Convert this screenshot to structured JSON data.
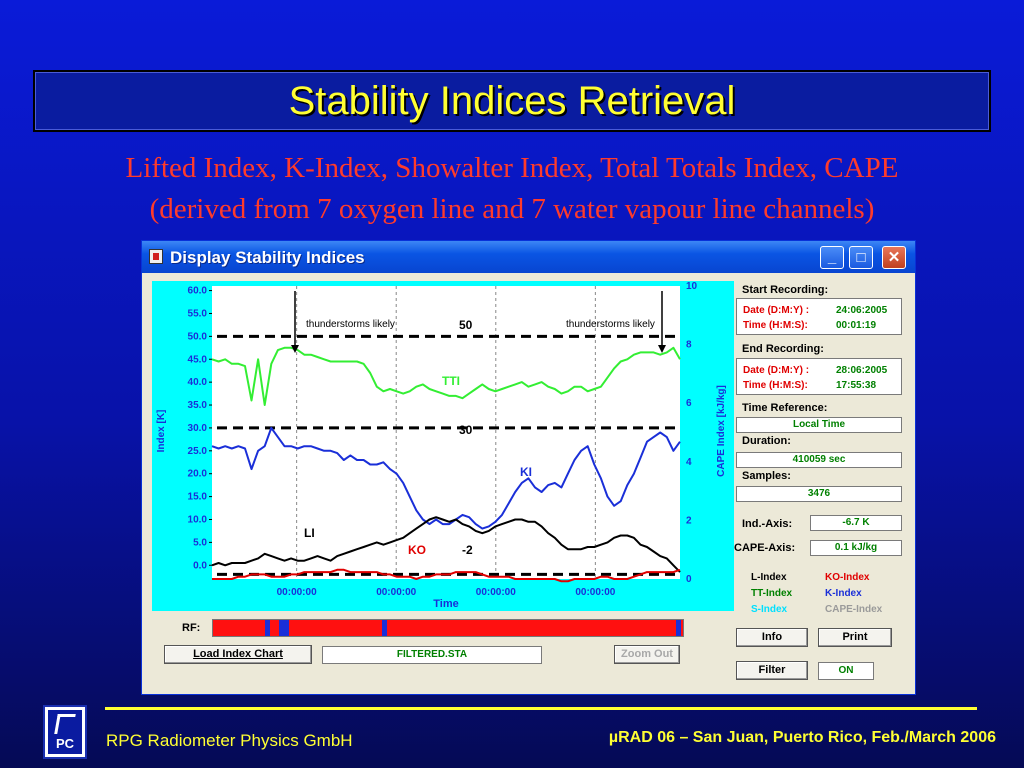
{
  "slide": {
    "title": "Stability Indices Retrieval",
    "subtitle_line1": "Lifted Index, K-Index, Showalter Index, Total Totals Index, CAPE",
    "subtitle_line2": "(derived from 7 oxygen line and 7 water vapour line channels)"
  },
  "window": {
    "title": "Display Stability Indices",
    "minimize": "_",
    "maximize": "□",
    "close": "✕",
    "icon": "app-icon"
  },
  "chart_data": {
    "type": "line",
    "xlabel": "Time",
    "ylabel": "Index [K]",
    "y2label": "CAPE Index [kJ/kg]",
    "y_ticks": [
      "60.0",
      "55.0",
      "50.0",
      "45.0",
      "40.0",
      "35.0",
      "30.0",
      "25.0",
      "20.0",
      "15.0",
      "10.0",
      "5.0",
      "0.0"
    ],
    "y2_ticks": [
      "10",
      "8",
      "6",
      "4",
      "2",
      "0"
    ],
    "x_ticks": [
      "00:00:00",
      "00:00:00",
      "00:00:00",
      "00:00:00"
    ],
    "ylim": [
      -3,
      61
    ],
    "y2lim": [
      0,
      10
    ],
    "threshold_lines": [
      {
        "value": 50,
        "label": "50"
      },
      {
        "value": 30,
        "label": "30"
      },
      {
        "value": -2,
        "label": "-2"
      }
    ],
    "annotations": [
      "thunderstorms likely",
      "thunderstorms likely"
    ],
    "series_labels": {
      "tti": "TTI",
      "ki": "KI",
      "li": "LI",
      "ko": "KO"
    },
    "series": [
      {
        "name": "TTI",
        "color": "#33ee33",
        "values": [
          45,
          44.5,
          45,
          44,
          44,
          43.5,
          36,
          45,
          35,
          44,
          47,
          47.5,
          47.5,
          47,
          46,
          46,
          45.5,
          45,
          44.5,
          44.5,
          44.5,
          44.5,
          44.5,
          44,
          42,
          39,
          38,
          38.5,
          38,
          37.5,
          38,
          39,
          39.5,
          38.5,
          38,
          37.5,
          37,
          37,
          36.5,
          37.5,
          38.5,
          39.5,
          38.5,
          38,
          38.5,
          39,
          39.5,
          40,
          39,
          39.5,
          40,
          39,
          38.5,
          37.5,
          38,
          39,
          39,
          38,
          38.5,
          39,
          41,
          43,
          44.5,
          45,
          46,
          46.5,
          46.5,
          46.5,
          46,
          46.5,
          47.5,
          45
        ]
      },
      {
        "name": "KI",
        "color": "#1a2fd8",
        "values": [
          26,
          25.5,
          26,
          25.5,
          26,
          25.5,
          21,
          25,
          26,
          30,
          28,
          26,
          26,
          25.5,
          26,
          26,
          25.5,
          25,
          25,
          24.5,
          23,
          24,
          23,
          23,
          22,
          22,
          22.5,
          21,
          20,
          18,
          15,
          12,
          10,
          9,
          10,
          9,
          9,
          10,
          11,
          10.5,
          9,
          8,
          8.5,
          9.5,
          11,
          13.5,
          16,
          18,
          19,
          17,
          16,
          17.5,
          18,
          17,
          20,
          23,
          25,
          26,
          22,
          19,
          15,
          13,
          14,
          17.5,
          20,
          23.5,
          27,
          28,
          29,
          28,
          25,
          27
        ]
      },
      {
        "name": "LI",
        "color": "#000000",
        "values": [
          0,
          0.5,
          0,
          0.5,
          0.5,
          0.5,
          1,
          1.5,
          2.5,
          2,
          1.5,
          1,
          1.5,
          1,
          1,
          1.5,
          2,
          1.5,
          1,
          2,
          2.5,
          3,
          3.5,
          4,
          4.5,
          5,
          4.5,
          5,
          5.5,
          6,
          7,
          8,
          9,
          10,
          10.5,
          10,
          9.5,
          10,
          9,
          8.5,
          7.5,
          7,
          7.5,
          8.5,
          9,
          9.5,
          10,
          10,
          9.5,
          9.5,
          8.5,
          7,
          6,
          4.5,
          3.5,
          3.5,
          3.5,
          4,
          4,
          4.5,
          5,
          6,
          6.5,
          6.5,
          6,
          4.5,
          4,
          3,
          2,
          1.5,
          0,
          -1.5
        ]
      },
      {
        "name": "KO",
        "color": "#e00000",
        "values": [
          -3,
          -3,
          -3,
          -3,
          -2.5,
          -2.5,
          -2,
          -2,
          -2,
          -2.5,
          -2.5,
          -2.5,
          -2,
          -2,
          -1.5,
          -1.5,
          -1.5,
          -1.5,
          -1.5,
          -1,
          -1,
          -1.5,
          -1.5,
          -1.5,
          -1.5,
          -1.5,
          -2,
          -2,
          -2.5,
          -2.5,
          -2.5,
          -3,
          -2.5,
          -2.5,
          -2,
          -2,
          -2,
          -1.5,
          -1.5,
          -1.5,
          -1.5,
          -2,
          -2.5,
          -2.5,
          -2.5,
          -2.5,
          -3,
          -3,
          -3,
          -3,
          -3,
          -3,
          -3,
          -3.5,
          -3.5,
          -3,
          -3,
          -3,
          -3,
          -2.5,
          -2.5,
          -3,
          -3,
          -3,
          -2.5,
          -2,
          -1.5,
          -1.5,
          -1.5,
          -1.5,
          -1.5,
          -1
        ]
      }
    ],
    "cape_values": [
      0,
      0,
      0,
      0,
      0,
      0,
      0,
      0,
      0,
      0,
      0,
      0,
      0,
      0,
      0,
      0,
      0,
      0,
      0,
      0,
      0,
      0,
      0,
      0,
      0,
      0,
      0,
      0,
      0,
      0,
      0,
      0,
      0,
      0,
      0,
      0,
      0,
      0,
      0,
      0,
      0,
      0,
      0,
      0,
      0,
      0,
      0,
      0,
      0,
      0,
      0,
      0,
      0,
      0,
      0,
      0,
      0,
      0,
      0,
      0,
      0,
      0,
      0,
      0,
      0,
      0,
      0,
      0,
      0,
      0,
      0,
      0
    ]
  },
  "rf": {
    "label": "RF:",
    "segments_blue_at": [
      0.11,
      0.14,
      0.15,
      0.36,
      0.985
    ]
  },
  "load_button": "Load Index Chart",
  "filename": "FILTERED.STA",
  "zoom_button": "Zoom Out",
  "start": {
    "title": "Start Recording:",
    "date_key": "Date (D:M:Y) :",
    "date_val": "24:06:2005",
    "time_key": "Time (H:M:S):",
    "time_val": "00:01:19"
  },
  "end": {
    "title": "End Recording:",
    "date_key": "Date (D:M:Y) :",
    "date_val": "28:06:2005",
    "time_key": "Time (H:M:S):",
    "time_val": "17:55:38"
  },
  "time_reference": {
    "title": "Time Reference:",
    "value": "Local Time"
  },
  "duration": {
    "title": "Duration:",
    "value": "410059 sec"
  },
  "samples": {
    "title": "Samples:",
    "value": "3476"
  },
  "ind_axis": {
    "label": "Ind.-Axis:",
    "value": "-6.7 K"
  },
  "cape_axis": {
    "label": "CAPE-Axis:",
    "value": "0.1 kJ/kg"
  },
  "legend": [
    {
      "label": "L-Index",
      "color": "#000000"
    },
    {
      "label": "KO-Index",
      "color": "#e00000"
    },
    {
      "label": "TT-Index",
      "color": "#008000"
    },
    {
      "label": "K-Index",
      "color": "#1a2fd8"
    },
    {
      "label": "S-Index",
      "color": "#00e0ff"
    },
    {
      "label": "CAPE-Index",
      "color": "#9a9a9a"
    }
  ],
  "buttons": {
    "info": "Info",
    "print": "Print",
    "filter": "Filter",
    "filter_state": "ON"
  },
  "footer": {
    "company": "RPG Radiometer Physics GmbH",
    "conference": "µRAD 06  – San Juan, Puerto Rico,  Feb./March  2006",
    "logo_text": "PC"
  }
}
